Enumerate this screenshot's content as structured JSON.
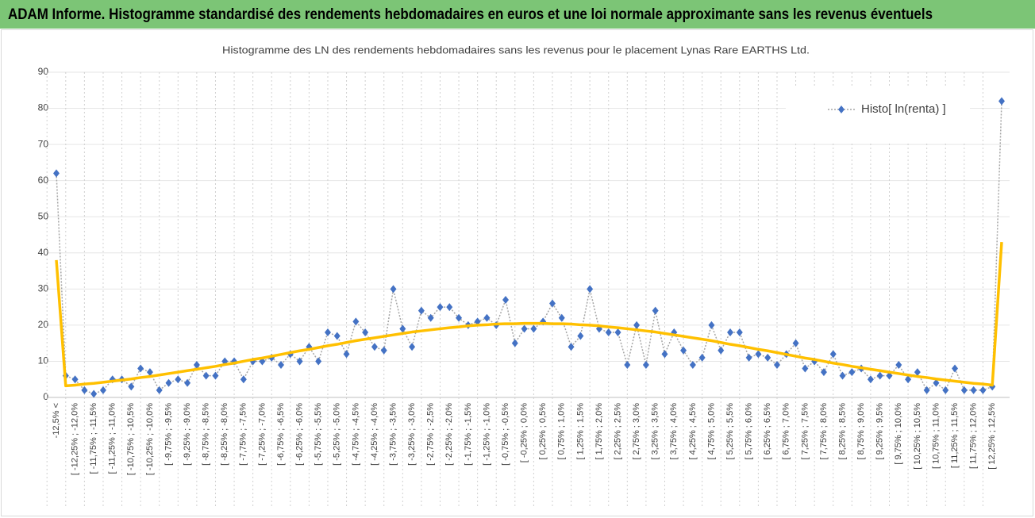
{
  "page_title": "ADAM Informe. Histogramme standardisé des rendements hebdomadaires en euros et une loi normale approximante sans les revenus éventuels",
  "chart_data": {
    "type": "line",
    "title": "Histogramme des LN des rendements hebdomadaires sans les revenus pour le placement Lynas Rare EARTHS Ltd.",
    "categories": [
      "-12,5% <",
      null,
      "[ -12,25% ; -12,0%",
      null,
      "[ -11,75% ; -11,5%",
      null,
      "[ -11,25% ; -11,0%",
      null,
      "[ -10,75% ; -10,5%",
      null,
      "[ -10,25% ; -10,0%",
      null,
      "[ -9,75% ; -9,5%",
      null,
      "[ -9,25% ; -9,0%",
      null,
      "[ -8,75% ; -8,5%",
      null,
      "[ -8,25% ; -8,0%",
      null,
      "[ -7,75% ; -7,5%",
      null,
      "[ -7,25% ; -7,0%",
      null,
      "[ -6,75% ; -6,5%",
      null,
      "[ -6,25% ; -6,0%",
      null,
      "[ -5,75% ; -5,5%",
      null,
      "[ -5,25% ; -5,0%",
      null,
      "[ -4,75% ; -4,5%",
      null,
      "[ -4,25% ; -4,0%",
      null,
      "[ -3,75% ; -3,5%",
      null,
      "[ -3,25% ; -3,0%",
      null,
      "[ -2,75% ; -2,5%",
      null,
      "[ -2,25% ; -2,0%",
      null,
      "[ -1,75% ; -1,5%",
      null,
      "[ -1,25% ; -1,0%",
      null,
      "[ -0,75% ; -0,5%",
      null,
      "[ -0,25% ; 0,0%",
      null,
      "[ 0,25% ; 0,5%",
      null,
      "[ 0,75% ; 1,0%",
      null,
      "[ 1,25% ; 1,5%",
      null,
      "[ 1,75% ; 2,0%",
      null,
      "[ 2,25% ; 2,5%",
      null,
      "[ 2,75% ; 3,0%",
      null,
      "[ 3,25% ; 3,5%",
      null,
      "[ 3,75% ; 4,0%",
      null,
      "[ 4,25% ; 4,5%",
      null,
      "[ 4,75% ; 5,0%",
      null,
      "[ 5,25% ; 5,5%",
      null,
      "[ 5,75% ; 6,0%",
      null,
      "[ 6,25% ; 6,5%",
      null,
      "[ 6,75% ; 7,0%",
      null,
      "[ 7,25% ; 7,5%",
      null,
      "[ 7,75% ; 8,0%",
      null,
      "[ 8,25% ; 8,5%",
      null,
      "[ 8,75% ; 9,0%",
      null,
      "[ 9,25% ; 9,5%",
      null,
      "[ 9,75% ; 10,0%",
      null,
      "[ 10,25% ; 10,5%",
      null,
      "[ 10,75% ; 11,0%",
      null,
      "[ 11,25% ; 11,5%",
      null,
      "[ 11,75% ; 12,0%",
      null,
      "[ 12,25% ; 12,5%",
      null
    ],
    "series": [
      {
        "name": "Histo[ ln(renta) ]",
        "color": "#4472c4",
        "line_color": "#a5a5a5",
        "values": [
          62,
          6,
          5,
          2,
          1,
          2,
          5,
          5,
          3,
          8,
          7,
          2,
          4,
          5,
          4,
          9,
          6,
          6,
          10,
          10,
          5,
          10,
          10,
          11,
          9,
          12,
          10,
          14,
          10,
          18,
          17,
          12,
          21,
          18,
          14,
          13,
          30,
          19,
          14,
          24,
          22,
          25,
          25,
          22,
          20,
          21,
          22,
          20,
          27,
          15,
          19,
          19,
          21,
          26,
          22,
          14,
          17,
          30,
          19,
          18,
          18,
          9,
          20,
          9,
          24,
          12,
          18,
          13,
          9,
          11,
          20,
          13,
          18,
          18,
          11,
          12,
          11,
          9,
          12,
          15,
          8,
          10,
          7,
          12,
          6,
          7,
          8,
          5,
          6,
          6,
          9,
          5,
          7,
          2,
          4,
          2,
          8,
          2,
          2,
          2,
          3,
          82
        ]
      },
      {
        "color": "#ffc000",
        "values": [
          38,
          3.2,
          3.4,
          3.7,
          3.9,
          4.2,
          4.5,
          4.8,
          5.1,
          5.5,
          5.8,
          6.2,
          6.6,
          7.0,
          7.4,
          7.8,
          8.2,
          8.6,
          9.1,
          9.5,
          10.0,
          10.5,
          10.9,
          11.4,
          11.9,
          12.4,
          12.9,
          13.3,
          13.8,
          14.3,
          14.7,
          15.2,
          15.7,
          16.1,
          16.5,
          16.9,
          17.3,
          17.7,
          18.1,
          18.4,
          18.7,
          19.0,
          19.3,
          19.5,
          19.8,
          20.0,
          20.1,
          20.3,
          20.4,
          20.4,
          20.5,
          20.5,
          20.5,
          20.4,
          20.4,
          20.3,
          20.1,
          20.0,
          19.8,
          19.5,
          19.3,
          19.0,
          18.7,
          18.4,
          18.1,
          17.7,
          17.3,
          16.9,
          16.5,
          16.1,
          15.7,
          15.2,
          14.7,
          14.3,
          13.8,
          13.3,
          12.9,
          12.4,
          11.9,
          11.4,
          10.9,
          10.5,
          10.0,
          9.5,
          9.1,
          8.6,
          8.2,
          7.8,
          7.4,
          7.0,
          6.6,
          6.2,
          5.8,
          5.5,
          5.1,
          4.8,
          4.5,
          4.2,
          3.9,
          3.7,
          3.4,
          43
        ]
      }
    ],
    "ylim": [
      0,
      90
    ],
    "yticks": [
      0,
      10,
      20,
      30,
      40,
      50,
      60,
      70,
      80,
      90
    ],
    "grid": true,
    "xgrid": true,
    "legend": "top-right"
  }
}
